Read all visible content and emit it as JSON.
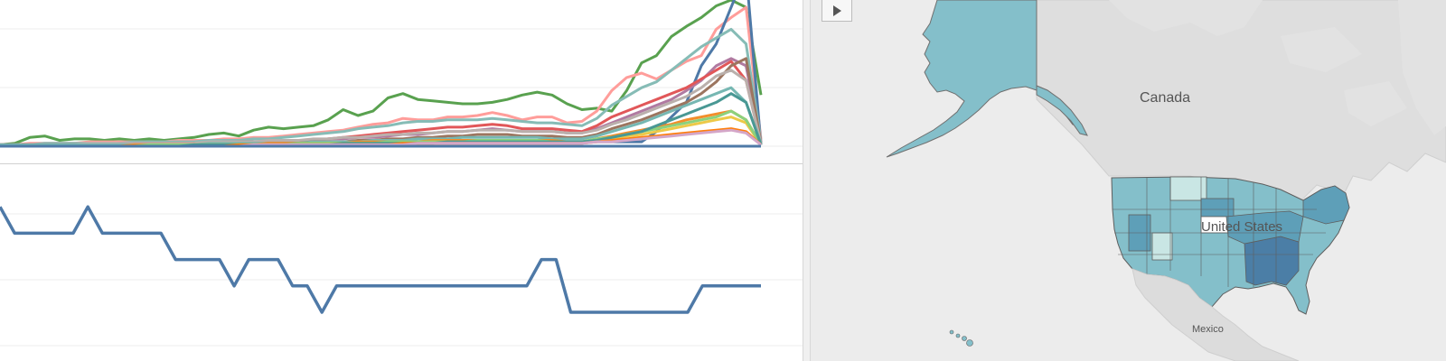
{
  "map": {
    "labels": {
      "canada": "Canada",
      "united_states": "United States",
      "mexico": "Mexico"
    },
    "play_button_icon": "play-icon"
  },
  "colors": {
    "state_fill": "#84bfca",
    "state_mid": "#5e9fb8",
    "state_dark": "#4b7ea6",
    "state_light": "#c9e6e4",
    "land": "#dcdcdc",
    "water": "#f4f4f4",
    "line_primary": "#4e79a7"
  },
  "chart_data": [
    {
      "type": "line",
      "title": "",
      "xlabel": "",
      "ylabel": "",
      "grid": true,
      "x": [
        1,
        2,
        3,
        4,
        5,
        6,
        7,
        8,
        9,
        10,
        11,
        12,
        13,
        14,
        15,
        16,
        17,
        18,
        19,
        20,
        21,
        22,
        23,
        24,
        25,
        26,
        27,
        28,
        29,
        30,
        31,
        32,
        33,
        34,
        35,
        36,
        37,
        38,
        39,
        40,
        41,
        42,
        43,
        44,
        45,
        46,
        47,
        48,
        49,
        50,
        51,
        52
      ],
      "ylim": [
        0,
        100
      ],
      "series": [
        {
          "color": "#59a14f",
          "values": [
            1,
            2,
            6,
            7,
            4,
            5,
            5,
            4,
            5,
            4,
            5,
            4,
            5,
            6,
            8,
            9,
            7,
            11,
            13,
            12,
            13,
            14,
            18,
            25,
            21,
            24,
            33,
            36,
            32,
            31,
            30,
            29,
            29,
            30,
            32,
            35,
            37,
            35,
            29,
            25,
            26,
            24,
            38,
            57,
            62,
            75,
            82,
            88,
            96,
            100,
            95,
            35
          ]
        },
        {
          "color": "#ff9d9a",
          "values": [
            1,
            1,
            2,
            2,
            2,
            2,
            3,
            3,
            3,
            3,
            3,
            3,
            4,
            4,
            4,
            5,
            5,
            6,
            6,
            7,
            8,
            9,
            10,
            11,
            13,
            15,
            16,
            19,
            18,
            18,
            20,
            20,
            21,
            23,
            21,
            18,
            20,
            20,
            16,
            17,
            24,
            38,
            47,
            50,
            46,
            52,
            58,
            62,
            80,
            88,
            95,
            5
          ]
        },
        {
          "color": "#4e79a7",
          "values": [
            1,
            1,
            1,
            1,
            1,
            1,
            1,
            1,
            1,
            1,
            1,
            1,
            2,
            2,
            2,
            2,
            2,
            2,
            2,
            2,
            2,
            2,
            2,
            2,
            3,
            3,
            3,
            3,
            3,
            3,
            3,
            3,
            3,
            3,
            3,
            3,
            3,
            3,
            3,
            3,
            3,
            3,
            3,
            3,
            10,
            20,
            30,
            55,
            70,
            95,
            120,
            1
          ]
        },
        {
          "color": "#86bcb6",
          "values": [
            1,
            1,
            1,
            2,
            2,
            2,
            2,
            2,
            2,
            3,
            3,
            3,
            3,
            3,
            4,
            4,
            4,
            5,
            5,
            6,
            7,
            8,
            9,
            10,
            12,
            13,
            14,
            16,
            17,
            17,
            18,
            18,
            18,
            19,
            18,
            17,
            16,
            16,
            15,
            14,
            19,
            28,
            34,
            40,
            44,
            52,
            60,
            68,
            74,
            80,
            70,
            4
          ]
        },
        {
          "color": "#b07aa1",
          "values": [
            1,
            1,
            1,
            1,
            1,
            1,
            1,
            1,
            2,
            2,
            2,
            2,
            2,
            2,
            2,
            3,
            3,
            3,
            3,
            4,
            4,
            4,
            5,
            5,
            6,
            6,
            7,
            8,
            8,
            9,
            10,
            10,
            11,
            12,
            11,
            10,
            10,
            10,
            9,
            9,
            12,
            16,
            20,
            24,
            28,
            32,
            38,
            45,
            55,
            60,
            55,
            3
          ]
        },
        {
          "color": "#e15759",
          "values": [
            1,
            1,
            1,
            1,
            1,
            1,
            1,
            1,
            1,
            2,
            2,
            2,
            2,
            2,
            2,
            2,
            3,
            3,
            3,
            3,
            4,
            4,
            5,
            6,
            7,
            8,
            9,
            10,
            11,
            12,
            13,
            13,
            14,
            15,
            14,
            12,
            12,
            12,
            11,
            10,
            14,
            20,
            24,
            28,
            32,
            36,
            40,
            46,
            52,
            58,
            45,
            2
          ]
        },
        {
          "color": "#9c755f",
          "values": [
            1,
            1,
            1,
            1,
            1,
            1,
            1,
            1,
            1,
            1,
            1,
            1,
            1,
            2,
            2,
            2,
            2,
            2,
            2,
            2,
            3,
            3,
            3,
            3,
            4,
            4,
            5,
            5,
            6,
            6,
            7,
            7,
            8,
            8,
            8,
            7,
            7,
            7,
            6,
            6,
            8,
            12,
            15,
            18,
            22,
            26,
            30,
            36,
            44,
            55,
            60,
            2
          ]
        },
        {
          "color": "#bab0ac",
          "values": [
            1,
            1,
            1,
            1,
            1,
            1,
            2,
            2,
            2,
            2,
            2,
            2,
            2,
            2,
            3,
            3,
            3,
            3,
            4,
            4,
            4,
            5,
            5,
            6,
            6,
            7,
            8,
            8,
            9,
            9,
            10,
            10,
            11,
            11,
            11,
            10,
            10,
            10,
            9,
            9,
            11,
            15,
            18,
            22,
            26,
            30,
            34,
            40,
            48,
            52,
            45,
            2
          ]
        },
        {
          "color": "#76b7b2",
          "values": [
            1,
            1,
            1,
            1,
            1,
            1,
            1,
            1,
            1,
            1,
            1,
            1,
            1,
            1,
            2,
            2,
            2,
            2,
            2,
            2,
            2,
            3,
            3,
            3,
            3,
            4,
            4,
            4,
            5,
            5,
            5,
            6,
            6,
            6,
            6,
            6,
            6,
            5,
            5,
            5,
            7,
            10,
            13,
            16,
            20,
            24,
            28,
            32,
            36,
            40,
            30,
            2
          ]
        },
        {
          "color": "#f28e2b",
          "values": [
            0,
            0,
            0,
            0,
            0,
            0,
            0,
            0,
            0,
            1,
            1,
            1,
            1,
            1,
            1,
            1,
            1,
            1,
            2,
            2,
            2,
            2,
            2,
            2,
            3,
            3,
            3,
            3,
            3,
            4,
            4,
            4,
            4,
            4,
            4,
            4,
            4,
            4,
            3,
            3,
            5,
            7,
            9,
            11,
            13,
            15,
            18,
            20,
            22,
            24,
            18,
            1
          ]
        },
        {
          "color": "#edc948",
          "values": [
            0,
            0,
            0,
            0,
            0,
            0,
            0,
            0,
            0,
            0,
            0,
            1,
            1,
            1,
            1,
            1,
            1,
            1,
            1,
            1,
            1,
            1,
            2,
            2,
            2,
            2,
            2,
            2,
            2,
            3,
            3,
            3,
            3,
            3,
            3,
            3,
            3,
            3,
            3,
            3,
            4,
            5,
            7,
            8,
            10,
            12,
            14,
            16,
            18,
            20,
            16,
            1
          ]
        },
        {
          "color": "#8cd17d",
          "values": [
            0,
            0,
            0,
            0,
            0,
            0,
            0,
            0,
            0,
            0,
            1,
            1,
            1,
            1,
            1,
            1,
            1,
            1,
            1,
            1,
            2,
            2,
            2,
            2,
            2,
            2,
            3,
            3,
            3,
            3,
            3,
            3,
            4,
            4,
            4,
            4,
            4,
            3,
            3,
            3,
            5,
            6,
            8,
            10,
            12,
            14,
            16,
            18,
            20,
            24,
            18,
            1
          ]
        },
        {
          "color": "#499894",
          "values": [
            0,
            0,
            0,
            0,
            0,
            0,
            0,
            0,
            0,
            0,
            0,
            0,
            0,
            1,
            1,
            1,
            1,
            1,
            1,
            1,
            1,
            1,
            1,
            2,
            2,
            2,
            2,
            2,
            2,
            2,
            3,
            3,
            3,
            3,
            3,
            3,
            3,
            3,
            3,
            3,
            4,
            6,
            8,
            10,
            14,
            18,
            22,
            26,
            30,
            36,
            30,
            1
          ]
        },
        {
          "color": "#ff7f0e",
          "values": [
            0,
            0,
            0,
            0,
            0,
            0,
            0,
            0,
            0,
            0,
            0,
            0,
            0,
            0,
            0,
            0,
            1,
            1,
            1,
            1,
            1,
            1,
            1,
            1,
            1,
            1,
            1,
            2,
            2,
            2,
            2,
            2,
            2,
            2,
            2,
            2,
            2,
            2,
            2,
            2,
            3,
            4,
            5,
            6,
            7,
            8,
            9,
            10,
            11,
            12,
            10,
            1
          ]
        },
        {
          "color": "#d4a6c8",
          "values": [
            0,
            0,
            0,
            0,
            0,
            0,
            0,
            0,
            0,
            0,
            0,
            0,
            0,
            0,
            0,
            0,
            0,
            1,
            1,
            1,
            1,
            1,
            1,
            1,
            1,
            1,
            1,
            1,
            2,
            2,
            2,
            2,
            2,
            2,
            2,
            2,
            2,
            2,
            2,
            2,
            3,
            3,
            4,
            5,
            6,
            7,
            8,
            9,
            10,
            11,
            9,
            1
          ]
        },
        {
          "color": "#4e79a7",
          "values": [
            0,
            0,
            0,
            0,
            0,
            0,
            0,
            0,
            0,
            0,
            0,
            0,
            0,
            0,
            0,
            0,
            0,
            0,
            0,
            0,
            0,
            0,
            0,
            0,
            0,
            0,
            0,
            0,
            0,
            0,
            0,
            0,
            0,
            0,
            0,
            0,
            0,
            0,
            0,
            0,
            0,
            0,
            0,
            0,
            0,
            0,
            0,
            0,
            0,
            0,
            0,
            0
          ]
        }
      ]
    },
    {
      "type": "line",
      "title": "",
      "xlabel": "",
      "ylabel": "",
      "grid": true,
      "ylim": [
        0,
        5
      ],
      "series": [
        {
          "color": "#4e79a7",
          "values": [
            4,
            3,
            3,
            3,
            3,
            3,
            4,
            3,
            3,
            3,
            3,
            3,
            2,
            2,
            2,
            2,
            1,
            2,
            2,
            2,
            1,
            1,
            0,
            1,
            1,
            1,
            1,
            1,
            1,
            1,
            1,
            1,
            1,
            1,
            1,
            1,
            1,
            2,
            2,
            0,
            0,
            0,
            0,
            0,
            0,
            0,
            0,
            0,
            1,
            1,
            1,
            1,
            1
          ]
        }
      ]
    }
  ]
}
